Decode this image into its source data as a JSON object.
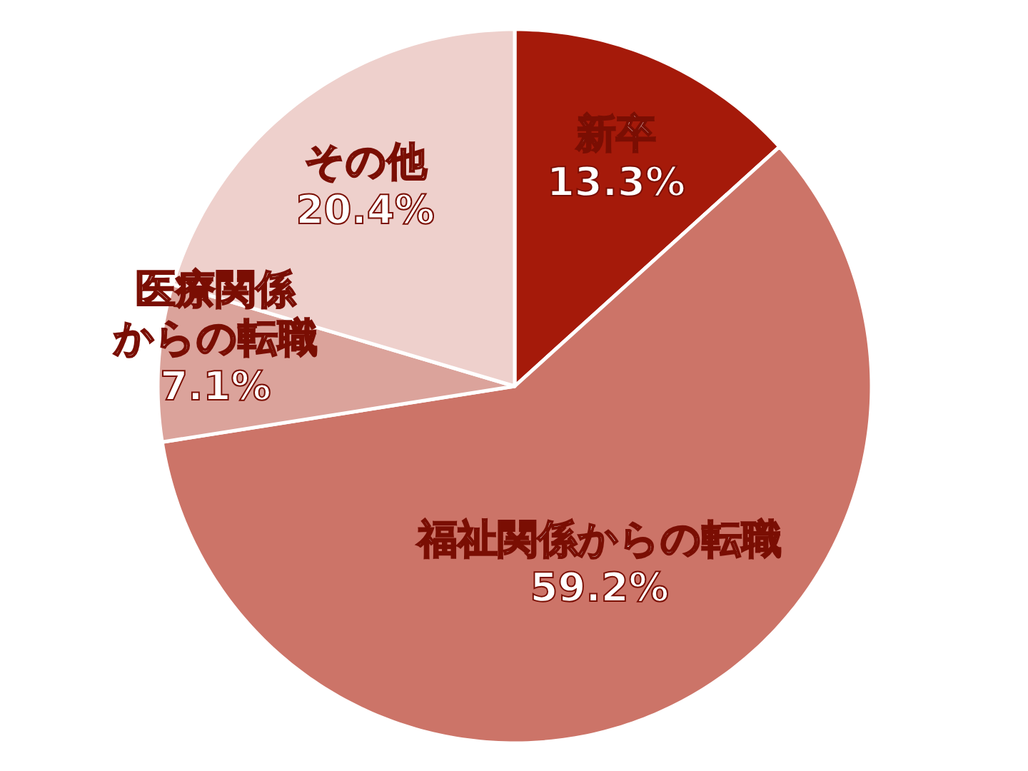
{
  "chart_data": {
    "type": "pie",
    "categories": [
      "新卒",
      "福祉関係からの転職",
      "医療関係からの転職",
      "その他"
    ],
    "values": [
      13.3,
      59.2,
      7.1,
      20.4
    ],
    "colors": [
      "#a51a0a",
      "#cc7468",
      "#dba39b",
      "#eed0cc"
    ],
    "value_labels": [
      "13.3%",
      "59.2%",
      "7.1%",
      "20.4%"
    ]
  }
}
